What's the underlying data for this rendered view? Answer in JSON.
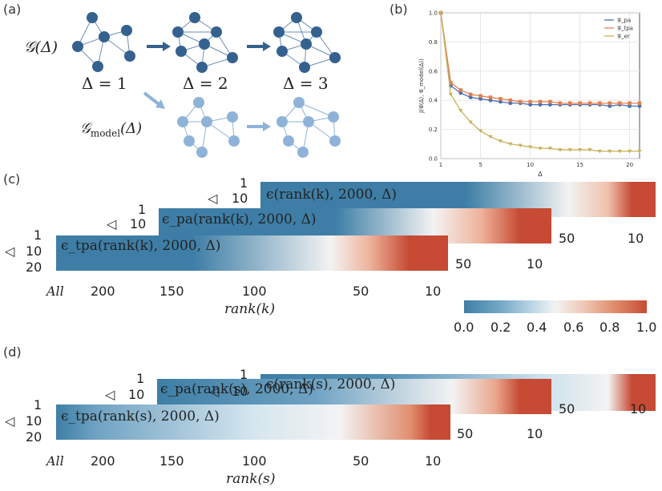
{
  "panels": {
    "a": {
      "label": "(a)",
      "graph_label": "𝒢(Δ)",
      "model_label": "𝒢_model(Δ)",
      "model_label_main": "𝒢",
      "model_label_sub": "model",
      "model_label_tail": "(Δ)",
      "deltas": [
        "Δ = 1",
        "Δ = 2",
        "Δ = 3"
      ]
    },
    "b": {
      "label": "(b)"
    },
    "c": {
      "label": "(c)",
      "strips": [
        {
          "label": "ϵ(rank(k), 2000, Δ)",
          "ticks": [
            "50",
            "10"
          ]
        },
        {
          "label": "ϵ_pa(rank(k), 2000, Δ)",
          "ticks": [
            "50",
            "10"
          ]
        },
        {
          "label": "ϵ_tpa(rank(k), 2000, Δ)",
          "ticks": [
            "All",
            "200",
            "150",
            "100",
            "50",
            "10"
          ]
        }
      ],
      "delta_ticks": [
        "1",
        "10",
        "20"
      ],
      "delta_symbol": "◁",
      "xlabel": "rank(k)"
    },
    "d": {
      "label": "(d)",
      "strips": [
        {
          "label": "ϵ(rank(s), 2000, Δ)",
          "ticks": [
            "50",
            "10"
          ]
        },
        {
          "label": "ϵ_pa(rank(s), 2000, Δ)",
          "ticks": [
            "50",
            "10"
          ]
        },
        {
          "label": "ϵ_tpa(rank(s), 2000, Δ)",
          "ticks": [
            "All",
            "200",
            "150",
            "100",
            "50",
            "10"
          ]
        }
      ],
      "delta_ticks": [
        "1",
        "10",
        "20"
      ],
      "delta_symbol": "◁",
      "xlabel": "rank(s)"
    }
  },
  "colorbar": {
    "ticks": [
      "0.0",
      "0.2",
      "0.4",
      "0.6",
      "0.8",
      "1.0"
    ],
    "colors": [
      "#3e7ea6",
      "#f3f3f3",
      "#c64a34"
    ]
  },
  "chart_data": {
    "type": "line",
    "title": "",
    "xlabel": "Δ",
    "ylabel": "J(𝒢(Δ), 𝒢_model(Δ))",
    "xlim": [
      1,
      21
    ],
    "ylim": [
      0,
      1.0
    ],
    "xticks": [
      "1",
      "5",
      "10",
      "15",
      "20"
    ],
    "yticks": [
      "0.0",
      "0.2",
      "0.4",
      "0.6",
      "0.8",
      "1.0"
    ],
    "legend_position": "top-right",
    "x": [
      1,
      2,
      3,
      4,
      5,
      6,
      7,
      8,
      9,
      10,
      11,
      12,
      13,
      14,
      15,
      16,
      17,
      18,
      19,
      20,
      21
    ],
    "series": [
      {
        "name": "𝒢_pa",
        "color": "#4a6fb5",
        "marker": "circle",
        "values": [
          1.0,
          0.5,
          0.45,
          0.42,
          0.41,
          0.4,
          0.39,
          0.38,
          0.38,
          0.37,
          0.37,
          0.37,
          0.37,
          0.37,
          0.37,
          0.37,
          0.37,
          0.36,
          0.37,
          0.36,
          0.36
        ]
      },
      {
        "name": "𝒢_tpa",
        "color": "#e0814f",
        "marker": "square",
        "values": [
          1.0,
          0.52,
          0.47,
          0.44,
          0.43,
          0.42,
          0.41,
          0.4,
          0.39,
          0.39,
          0.39,
          0.39,
          0.38,
          0.38,
          0.38,
          0.38,
          0.38,
          0.38,
          0.38,
          0.38,
          0.38
        ]
      },
      {
        "name": "𝒢_er",
        "color": "#c9b15a",
        "marker": "triangle-down",
        "values": [
          1.0,
          0.44,
          0.33,
          0.25,
          0.19,
          0.15,
          0.12,
          0.1,
          0.09,
          0.08,
          0.07,
          0.07,
          0.06,
          0.06,
          0.06,
          0.06,
          0.05,
          0.05,
          0.05,
          0.05,
          0.05
        ]
      }
    ]
  }
}
